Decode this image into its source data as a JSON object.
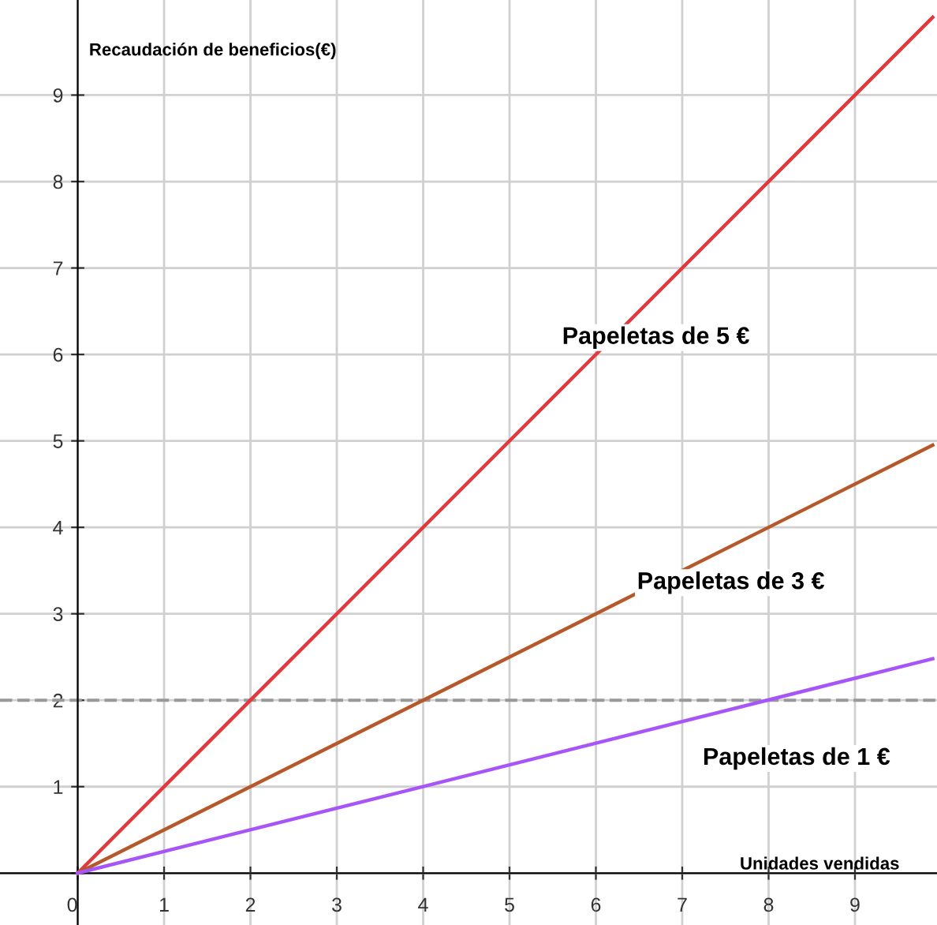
{
  "chart_data": {
    "type": "line",
    "xlabel": "Unidades vendidas",
    "ylabel": "Recaudación de beneficios(€)",
    "x": [
      0,
      9.9
    ],
    "series": [
      {
        "name": "Papeletas de 5 €",
        "color": "#e0393e",
        "values": [
          0,
          9.9
        ]
      },
      {
        "name": "Papeletas de 3 €",
        "color": "#b5582a",
        "values": [
          0,
          4.95
        ]
      },
      {
        "name": "Papeletas de 1 €",
        "color": "#a855f7",
        "values": [
          0,
          2.48
        ]
      }
    ],
    "xlim": [
      -0.9,
      9.95
    ],
    "ylim": [
      -0.6,
      10.1
    ],
    "xticks": [
      0,
      1,
      2,
      3,
      4,
      5,
      6,
      7,
      8,
      9
    ],
    "yticks": [
      {
        "value": 0,
        "label": null
      },
      1,
      2,
      3,
      4,
      5,
      6,
      7,
      8,
      9
    ],
    "ref_lines": [
      {
        "axis": "y",
        "value": 2,
        "color": "#999999",
        "line_style": "dashed"
      }
    ],
    "grid": true,
    "legend": false,
    "line_style": "solid",
    "marker": "none"
  }
}
